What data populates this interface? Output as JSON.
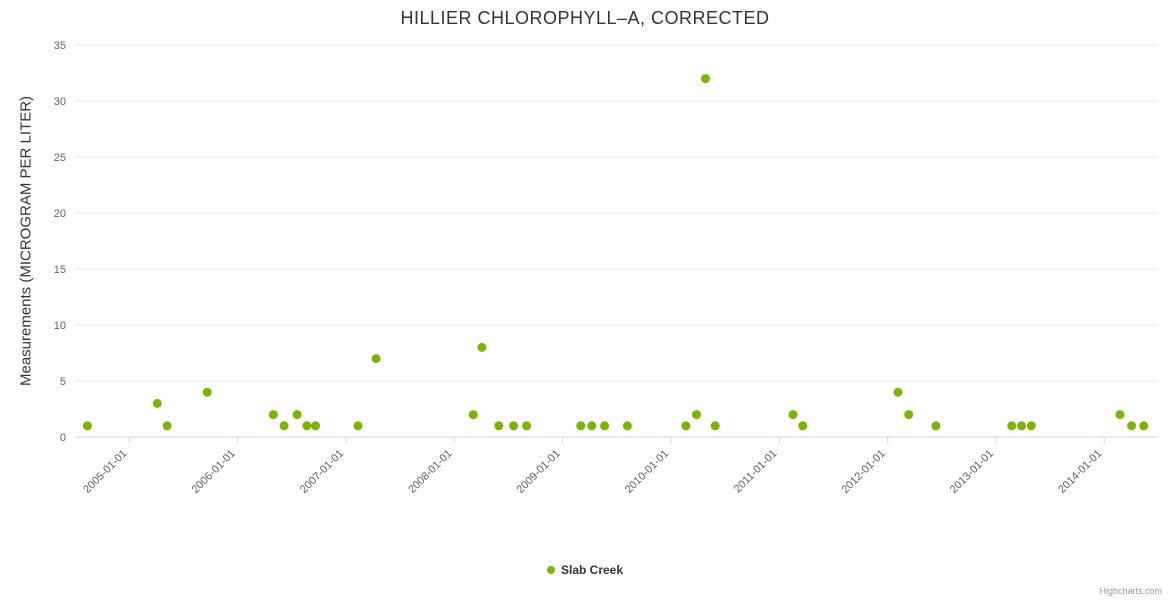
{
  "chart": {
    "title": "HILLIER CHLOROPHYLL–A, CORRECTED",
    "ylabel": "Measurements (MICROGRAM PER LITER)",
    "series_name": "Slab Creek",
    "credits": "Highcharts.com"
  },
  "style": {
    "point_color": "#7cb500",
    "grid_color": "#e6e6e6",
    "axis_line_color": "#ccd6eb",
    "tick_color": "#ccd6eb",
    "title_color": "#333333",
    "label_color": "#606060",
    "credits_color": "#999999"
  },
  "chart_data": {
    "type": "scatter",
    "title": "HILLIER CHLOROPHYLL–A, CORRECTED",
    "xlabel": "",
    "ylabel": "Measurements (MICROGRAM PER LITER)",
    "ylim": [
      0,
      35
    ],
    "y_ticks": [
      0,
      5,
      10,
      15,
      20,
      25,
      30,
      35
    ],
    "x_ticks": [
      "2005-01-01",
      "2006-01-01",
      "2007-01-01",
      "2008-01-01",
      "2009-01-01",
      "2010-01-01",
      "2011-01-01",
      "2012-01-01",
      "2013-01-01",
      "2014-01-01"
    ],
    "x_range": [
      "2004-07-01",
      "2014-07-01"
    ],
    "grid": true,
    "legend_position": "bottom-center",
    "series": [
      {
        "name": "Slab Creek",
        "color": "#7cb500",
        "points": [
          [
            "2004-08-12",
            1
          ],
          [
            "2005-04-05",
            3
          ],
          [
            "2005-05-08",
            1
          ],
          [
            "2005-09-20",
            4
          ],
          [
            "2006-05-01",
            2
          ],
          [
            "2006-06-06",
            1
          ],
          [
            "2006-07-20",
            2
          ],
          [
            "2006-08-22",
            1
          ],
          [
            "2006-09-20",
            1
          ],
          [
            "2007-02-10",
            1
          ],
          [
            "2007-04-12",
            7
          ],
          [
            "2008-03-05",
            2
          ],
          [
            "2008-04-03",
            8
          ],
          [
            "2008-05-30",
            1
          ],
          [
            "2008-07-19",
            1
          ],
          [
            "2008-09-01",
            1
          ],
          [
            "2009-03-03",
            1
          ],
          [
            "2009-04-09",
            1
          ],
          [
            "2009-05-22",
            1
          ],
          [
            "2009-08-07",
            1
          ],
          [
            "2010-02-20",
            1
          ],
          [
            "2010-03-28",
            2
          ],
          [
            "2010-04-27",
            32
          ],
          [
            "2010-05-30",
            1
          ],
          [
            "2011-02-16",
            2
          ],
          [
            "2011-03-21",
            1
          ],
          [
            "2012-02-05",
            4
          ],
          [
            "2012-03-12",
            2
          ],
          [
            "2012-06-12",
            1
          ],
          [
            "2013-02-23",
            1
          ],
          [
            "2013-03-28",
            1
          ],
          [
            "2013-04-30",
            1
          ],
          [
            "2014-02-23",
            2
          ],
          [
            "2014-04-03",
            1
          ],
          [
            "2014-05-14",
            1
          ]
        ]
      }
    ]
  }
}
